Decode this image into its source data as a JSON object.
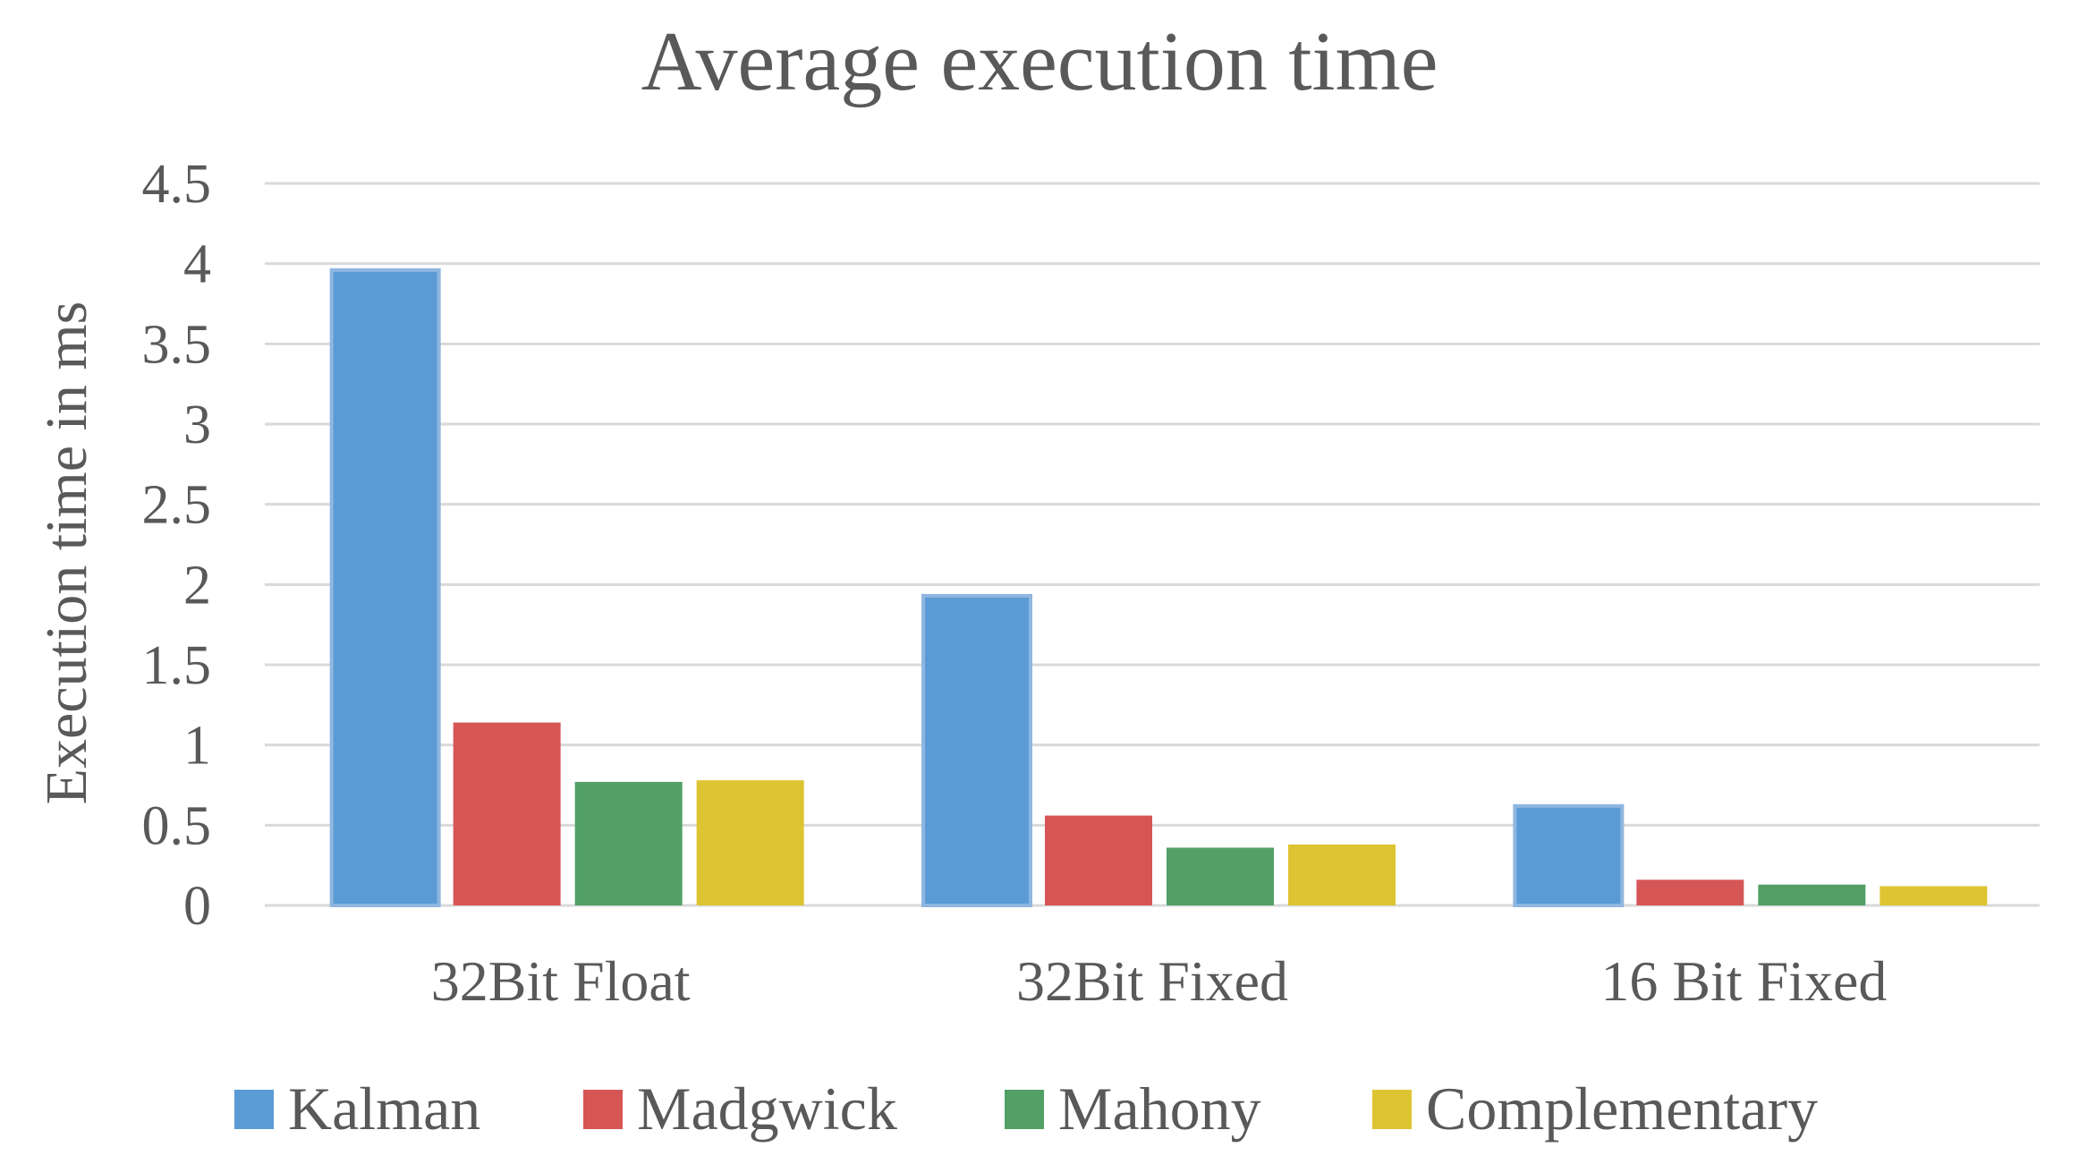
{
  "chart_data": {
    "type": "bar",
    "title": "Average execution time",
    "xlabel": "",
    "ylabel": "Execution time in ms",
    "ylim": [
      0,
      4.5
    ],
    "yticks": [
      "0",
      "0.5",
      "1",
      "1.5",
      "2",
      "2.5",
      "3",
      "3.5",
      "4",
      "4.5"
    ],
    "grid": true,
    "legend_position": "bottom",
    "categories": [
      "32Bit Float",
      "32Bit Fixed",
      "16 Bit Fixed"
    ],
    "series": [
      {
        "name": "Kalman",
        "color": "#5B9BD5",
        "values": [
          3.96,
          1.93,
          0.62
        ]
      },
      {
        "name": "Madgwick",
        "color": "#D65656",
        "values": [
          1.14,
          0.56,
          0.16
        ]
      },
      {
        "name": "Mahony",
        "color": "#52A065",
        "values": [
          0.77,
          0.36,
          0.13
        ]
      },
      {
        "name": "Complementary",
        "color": "#DDC432",
        "values": [
          0.78,
          0.38,
          0.12
        ]
      }
    ],
    "colors": {
      "gridline": "#D9D9D9",
      "text": "#595959",
      "bar_border": "#8FB6E0"
    }
  }
}
